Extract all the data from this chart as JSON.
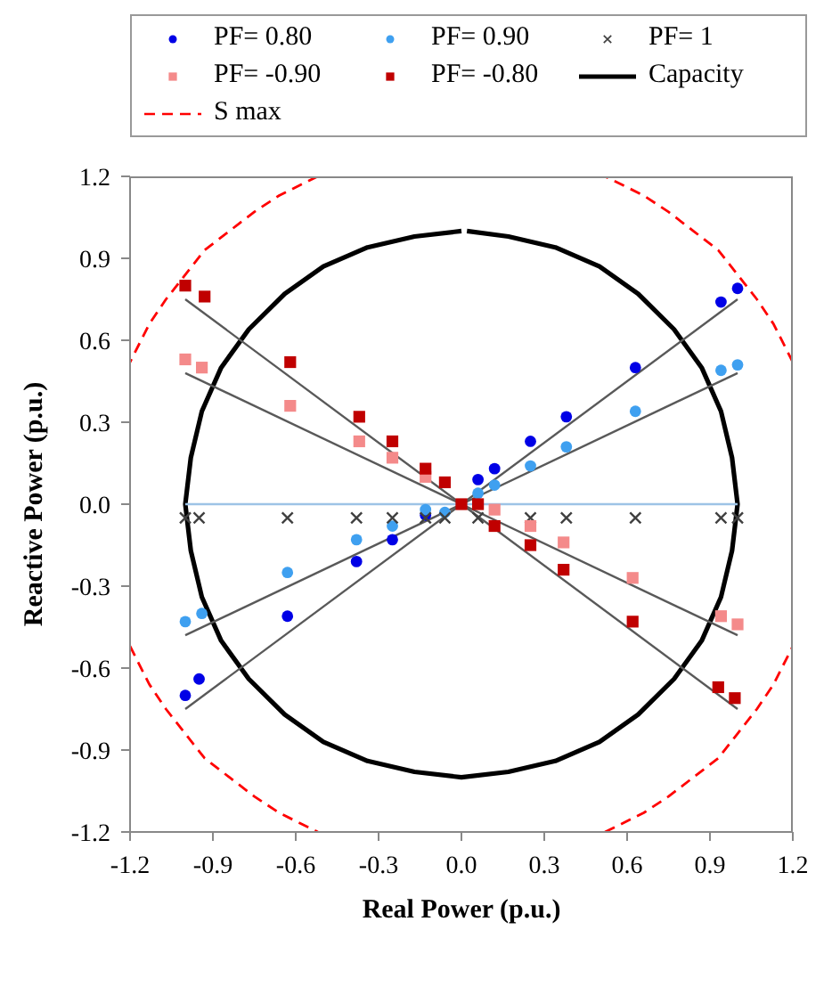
{
  "chart_data": {
    "type": "scatter",
    "xlabel": "Real Power (p.u.)",
    "ylabel": "Reactive Power (p.u.)",
    "xlim": [
      -1.2,
      1.2
    ],
    "xticks": [
      -1.2,
      -0.9,
      -0.6,
      -0.3,
      {
        "value": 0,
        "label": "0.0"
      },
      0.3,
      0.6,
      0.9,
      1.2
    ],
    "ylim": [
      -1.2,
      1.2
    ],
    "yticks": [
      -1.2,
      -0.9,
      -0.6,
      -0.3,
      {
        "value": 0,
        "label": "0.0"
      },
      0.3,
      0.6,
      0.9,
      1.2
    ],
    "grid": false,
    "legend": "top",
    "series": [
      {
        "type": "line",
        "color": "#000000",
        "line_style": "solid",
        "x": [
          0,
          -0.17,
          -0.34,
          -0.5,
          -0.64,
          -0.77,
          -0.87,
          -0.94,
          -0.98,
          -1,
          -0.98,
          -0.94,
          -0.87,
          -0.77,
          -0.64,
          -0.5,
          -0.34,
          -0.17,
          0,
          0.17,
          0.34,
          0.5,
          0.64,
          0.77,
          0.87,
          0.94,
          0.98,
          1,
          0.98,
          0.94,
          0.87,
          0.77,
          0.64,
          0.5,
          0.34,
          0.17,
          0.02
        ],
        "values": [
          1,
          0.98,
          0.94,
          0.87,
          0.77,
          0.64,
          0.5,
          0.34,
          0.17,
          0,
          -0.17,
          -0.34,
          -0.5,
          -0.64,
          -0.77,
          -0.87,
          -0.94,
          -0.98,
          -1,
          -0.98,
          -0.94,
          -0.87,
          -0.77,
          -0.64,
          -0.5,
          -0.34,
          -0.17,
          0,
          0.17,
          0.34,
          0.5,
          0.64,
          0.77,
          0.87,
          0.94,
          0.98,
          1
        ],
        "name": "Capacity"
      },
      {
        "type": "line",
        "color": "#ff0000",
        "line_style": "dashed",
        "name": "S max",
        "x": [
          1.2,
          1.13,
          1.07,
          1.0,
          0.93,
          0.84,
          0.75,
          0.66,
          0.52,
          null,
          -0.52,
          -0.66,
          -0.75,
          -0.84,
          -0.93,
          -1.0,
          -1.07,
          -1.13,
          -1.2,
          null,
          -1.2,
          -1.13,
          -1.07,
          -1.0,
          -0.93,
          -0.84,
          -0.75,
          -0.66,
          -0.52,
          null,
          0.52,
          0.66,
          0.75,
          0.84,
          0.93,
          1.0,
          1.07,
          1.13,
          1.2
        ],
        "values": [
          0.52,
          0.66,
          0.75,
          0.84,
          0.93,
          1.0,
          1.07,
          1.13,
          1.2,
          null,
          1.2,
          1.13,
          1.07,
          1.0,
          0.93,
          0.84,
          0.75,
          0.66,
          0.52,
          null,
          -0.52,
          -0.66,
          -0.75,
          -0.84,
          -0.93,
          -1.0,
          -1.07,
          -1.13,
          -1.2,
          null,
          -1.2,
          -1.13,
          -1.07,
          -1.0,
          -0.93,
          -0.84,
          -0.75,
          -0.66,
          -0.52
        ]
      },
      {
        "type": "line",
        "color": "#9dc3e6",
        "line_style": "solid",
        "x": [
          -1,
          1
        ],
        "values": [
          0,
          0
        ]
      },
      {
        "type": "line",
        "color": "#595959",
        "line_style": "solid",
        "x": [
          -1,
          1
        ],
        "values": [
          -0.75,
          0.75
        ]
      },
      {
        "type": "line",
        "color": "#595959",
        "line_style": "solid",
        "x": [
          -1,
          1
        ],
        "values": [
          -0.48,
          0.48
        ]
      },
      {
        "type": "line",
        "color": "#595959",
        "line_style": "solid",
        "x": [
          -1,
          1
        ],
        "values": [
          0.75,
          -0.75
        ]
      },
      {
        "type": "line",
        "color": "#595959",
        "line_style": "solid",
        "x": [
          -1,
          1
        ],
        "values": [
          0.48,
          -0.48
        ]
      },
      {
        "type": "scatter",
        "name": "PF= 0.80",
        "color": "#0000e6",
        "marker": "circle",
        "x": [
          -1.0,
          -0.95,
          -0.63,
          -0.38,
          -0.25,
          -0.13,
          0.06,
          0.12,
          0.25,
          0.38,
          0.63,
          0.94,
          1.0
        ],
        "values": [
          -0.7,
          -0.64,
          -0.41,
          -0.21,
          -0.13,
          -0.04,
          0.09,
          0.13,
          0.23,
          0.32,
          0.5,
          0.74,
          0.79
        ]
      },
      {
        "type": "scatter",
        "name": "PF= 0.90",
        "color": "#3fa0f0",
        "marker": "circle",
        "x": [
          -1.0,
          -0.94,
          -0.63,
          -0.38,
          -0.25,
          -0.13,
          -0.06,
          0.06,
          0.12,
          0.25,
          0.38,
          0.63,
          0.94,
          1.0
        ],
        "values": [
          -0.43,
          -0.4,
          -0.25,
          -0.13,
          -0.08,
          -0.02,
          -0.03,
          0.04,
          0.07,
          0.14,
          0.21,
          0.34,
          0.49,
          0.51
        ]
      },
      {
        "type": "scatter",
        "name": "PF= 1",
        "color": "#404040",
        "marker": "cross",
        "x": [
          -1.0,
          -0.95,
          -0.63,
          -0.38,
          -0.25,
          -0.13,
          -0.06,
          0.06,
          0.25,
          0.38,
          0.63,
          0.94,
          1.0
        ],
        "values": [
          -0.05,
          -0.05,
          -0.05,
          -0.05,
          -0.05,
          -0.05,
          -0.05,
          -0.05,
          -0.05,
          -0.05,
          -0.05,
          -0.05,
          -0.05
        ]
      },
      {
        "type": "scatter",
        "name": "PF= -0.90",
        "color": "#f48a8a",
        "marker": "square",
        "x": [
          -1.0,
          -0.94,
          -0.62,
          -0.37,
          -0.25,
          -0.13,
          0.12,
          0.25,
          0.37,
          0.62,
          0.94,
          1.0
        ],
        "values": [
          0.53,
          0.5,
          0.36,
          0.23,
          0.17,
          0.1,
          -0.02,
          -0.08,
          -0.14,
          -0.27,
          -0.41,
          -0.44
        ]
      },
      {
        "type": "scatter",
        "name": "PF= -0.80",
        "color": "#c00000",
        "marker": "square",
        "x": [
          -1.0,
          -0.93,
          -0.62,
          -0.37,
          -0.25,
          -0.13,
          -0.06,
          0.0,
          0.06,
          0.12,
          0.25,
          0.37,
          0.62,
          0.93,
          0.99
        ],
        "values": [
          0.8,
          0.76,
          0.52,
          0.32,
          0.23,
          0.13,
          0.08,
          0.0,
          0.0,
          -0.08,
          -0.15,
          -0.24,
          -0.43,
          -0.67,
          -0.71
        ]
      }
    ]
  }
}
